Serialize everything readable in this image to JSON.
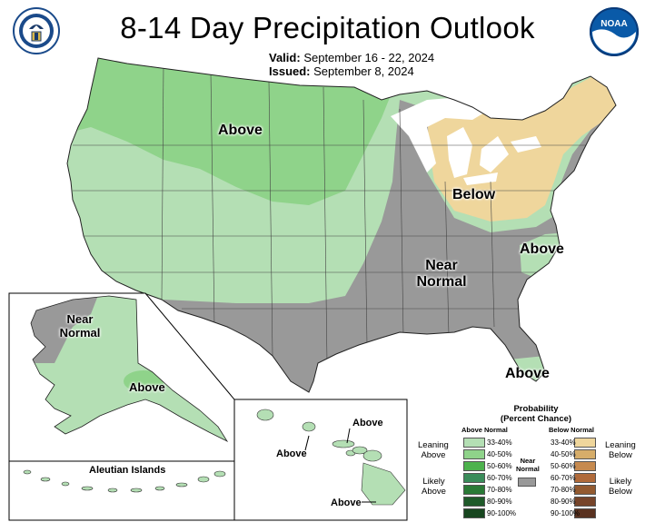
{
  "header": {
    "title": "8-14 Day Precipitation Outlook",
    "valid_label": "Valid:",
    "valid_value": "September 16 - 22, 2024",
    "issued_label": "Issued:",
    "issued_value": "September 8, 2024",
    "noaa_logo_text": "NOAA"
  },
  "map_labels": {
    "conus_above_north": "Above",
    "conus_below_ne": "Below",
    "conus_near_normal_1": "Near",
    "conus_near_normal_2": "Normal",
    "conus_above_nc": "Above",
    "conus_above_fl": "Above",
    "alaska_near_1": "Near",
    "alaska_near_2": "Normal",
    "alaska_above": "Above",
    "aleutian_title": "Aleutian Islands",
    "hawaii_above_1": "Above",
    "hawaii_above_2": "Above",
    "hawaii_above_3": "Above"
  },
  "legend": {
    "title_1": "Probability",
    "title_2": "(Percent Chance)",
    "above_header": "Above Normal",
    "below_header": "Below Normal",
    "near_header_1": "Near",
    "near_header_2": "Normal",
    "leaning_above_1": "Leaning",
    "leaning_above_2": "Above",
    "likely_above_1": "Likely",
    "likely_above_2": "Above",
    "leaning_below_1": "Leaning",
    "leaning_below_2": "Below",
    "likely_below_1": "Likely",
    "likely_below_2": "Below",
    "above_bins": [
      {
        "label": "33-40%",
        "color": "#b4dfb4"
      },
      {
        "label": "40-50%",
        "color": "#8fd38a"
      },
      {
        "label": "50-60%",
        "color": "#4db24d"
      },
      {
        "label": "60-70%",
        "color": "#3a8c5a"
      },
      {
        "label": "70-80%",
        "color": "#2a7a36"
      },
      {
        "label": "80-90%",
        "color": "#1f5a2a"
      },
      {
        "label": "90-100%",
        "color": "#17461f"
      }
    ],
    "below_bins": [
      {
        "label": "33-40%",
        "color": "#efd69c"
      },
      {
        "label": "40-50%",
        "color": "#d6ad6a"
      },
      {
        "label": "50-60%",
        "color": "#c68a4f"
      },
      {
        "label": "60-70%",
        "color": "#b06a3a"
      },
      {
        "label": "70-80%",
        "color": "#935a30"
      },
      {
        "label": "80-90%",
        "color": "#76442a"
      },
      {
        "label": "90-100%",
        "color": "#5a3220"
      }
    ],
    "near_color": "#999999"
  },
  "colors": {
    "above_light": "#b4dfb4",
    "above_medium": "#8fd38a",
    "below_light": "#efd69c",
    "near_normal": "#999999",
    "water": "#ffffff"
  }
}
